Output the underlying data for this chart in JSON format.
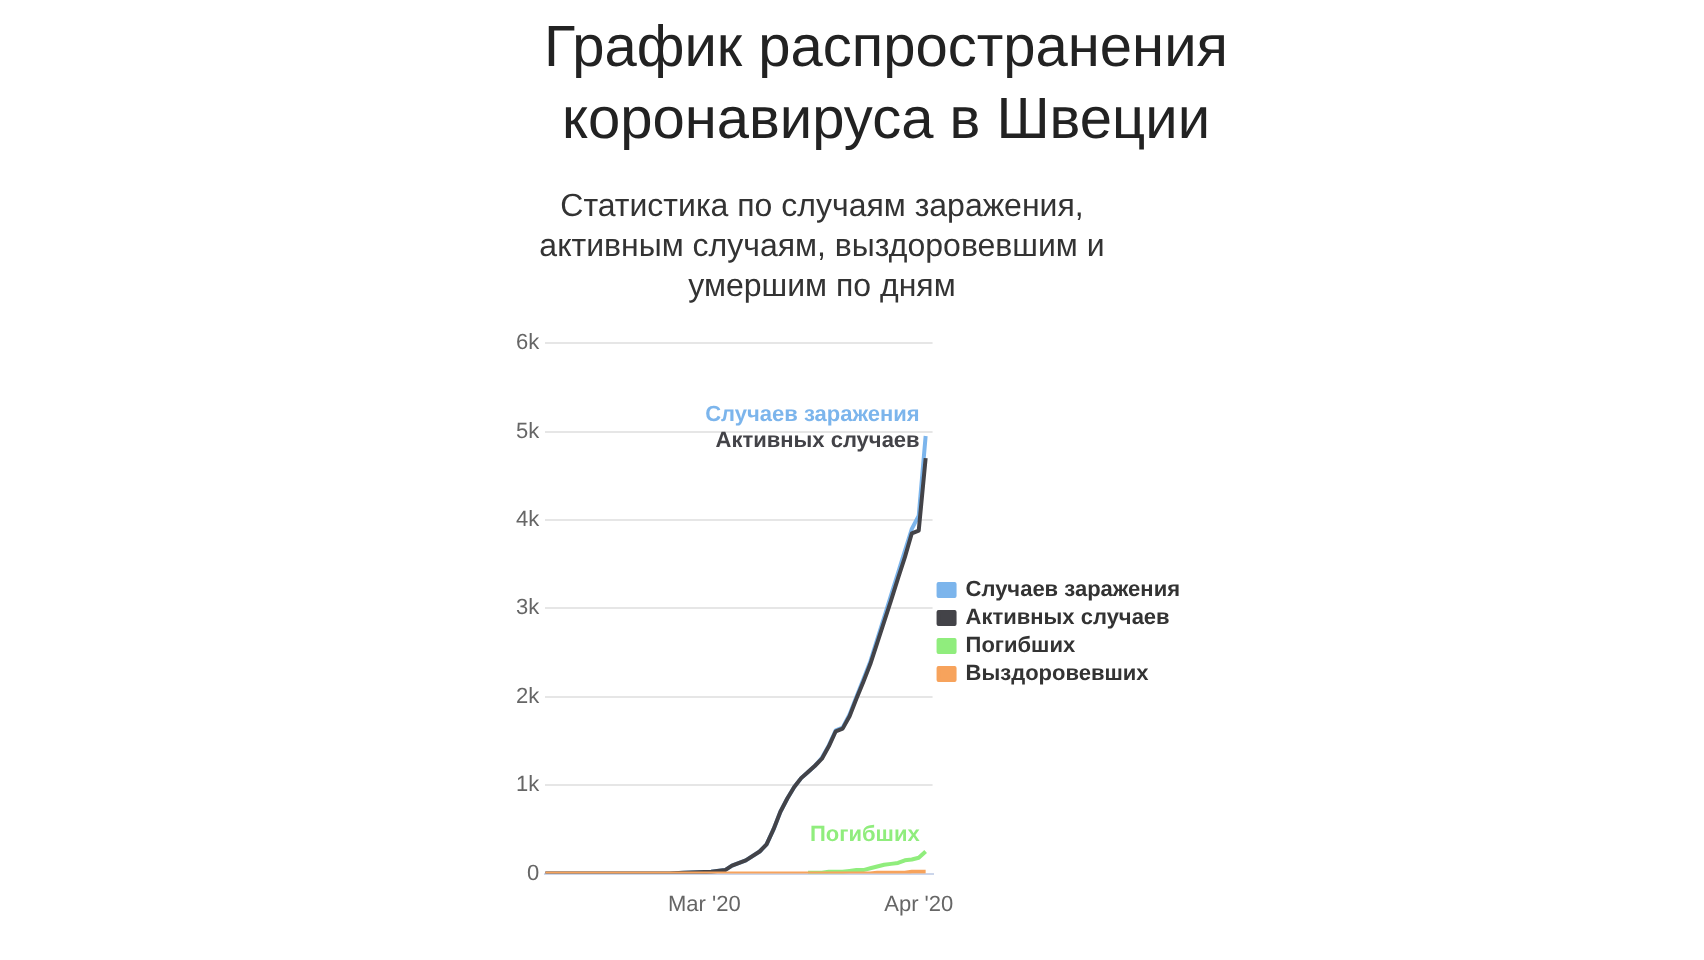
{
  "chart_data": {
    "type": "line",
    "title": "График распространения коронавируса в Швеции",
    "subtitle": "Статистика по случаям заражения, активным случаям, выздоровевшим и умершим по дням",
    "x": [
      "2020-02-07",
      "2020-02-25",
      "2020-02-27",
      "2020-03-02",
      "2020-03-04",
      "2020-03-05",
      "2020-03-07",
      "2020-03-09",
      "2020-03-10",
      "2020-03-11",
      "2020-03-12",
      "2020-03-13",
      "2020-03-14",
      "2020-03-15",
      "2020-03-16",
      "2020-03-17",
      "2020-03-18",
      "2020-03-19",
      "2020-03-20",
      "2020-03-21",
      "2020-03-22",
      "2020-03-23",
      "2020-03-24",
      "2020-03-25",
      "2020-03-26",
      "2020-03-27",
      "2020-03-28",
      "2020-03-29",
      "2020-03-30",
      "2020-03-31",
      "2020-04-01",
      "2020-04-02"
    ],
    "series": [
      {
        "name": "Случаев заражения",
        "color": "#7cb5ec",
        "values": [
          0,
          0,
          10,
          20,
          40,
          90,
          150,
          250,
          330,
          500,
          700,
          850,
          980,
          1080,
          1150,
          1220,
          1310,
          1450,
          1620,
          1650,
          1800,
          2000,
          2200,
          2400,
          2650,
          2900,
          3150,
          3400,
          3650,
          3900,
          4050,
          4950
        ]
      },
      {
        "name": "Активных случаев",
        "color": "#434348",
        "values": [
          0,
          0,
          10,
          20,
          40,
          90,
          150,
          250,
          330,
          500,
          700,
          850,
          980,
          1080,
          1150,
          1220,
          1300,
          1440,
          1610,
          1640,
          1780,
          1980,
          2170,
          2370,
          2610,
          2850,
          3090,
          3340,
          3580,
          3850,
          3880,
          4700
        ]
      },
      {
        "name": "Погибших",
        "color": "#90ed7d",
        "values": [
          null,
          null,
          null,
          null,
          null,
          null,
          null,
          null,
          null,
          null,
          null,
          null,
          null,
          null,
          10,
          10,
          10,
          20,
          20,
          20,
          30,
          40,
          40,
          60,
          80,
          100,
          110,
          120,
          150,
          160,
          180,
          250
        ]
      },
      {
        "name": "Выздоровевших",
        "color": "#f7a35c",
        "values": [
          0,
          0,
          0,
          0,
          0,
          0,
          0,
          0,
          0,
          0,
          0,
          0,
          0,
          0,
          0,
          0,
          0,
          0,
          0,
          0,
          0,
          0,
          0,
          0,
          10,
          10,
          10,
          10,
          10,
          20,
          20,
          20
        ]
      }
    ],
    "xlim": [
      "2020-02-07",
      "2020-04-03"
    ],
    "xticks": [
      {
        "value": "2020-03-01",
        "label": "Mar '20"
      },
      {
        "value": "2020-04-01",
        "label": "Apr '20"
      }
    ],
    "ylim": [
      0,
      6000
    ],
    "yticks": [
      {
        "value": 0,
        "label": "0"
      },
      {
        "value": 1000,
        "label": "1k"
      },
      {
        "value": 2000,
        "label": "2k"
      },
      {
        "value": 3000,
        "label": "3k"
      },
      {
        "value": 4000,
        "label": "4k"
      },
      {
        "value": 5000,
        "label": "5k"
      },
      {
        "value": 6000,
        "label": "6k"
      }
    ],
    "grid": "y",
    "legend": "right",
    "annotations": [
      {
        "text": "Случаев заражения",
        "x": "2020-04-02",
        "y": 5000
      },
      {
        "text": "Активных случаев",
        "x": "2020-04-02",
        "y": 4700
      },
      {
        "text": "Погибших",
        "x": "2020-04-02",
        "y": 250
      }
    ]
  }
}
